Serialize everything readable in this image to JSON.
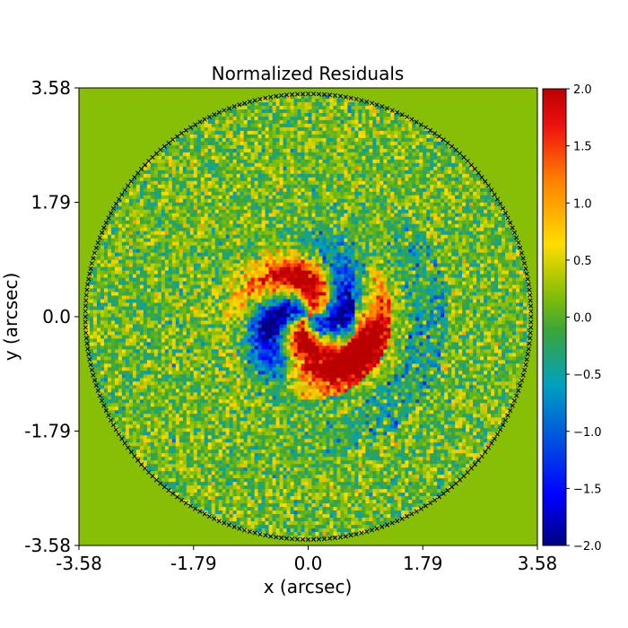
{
  "chart_data": {
    "type": "heatmap",
    "title": "Normalized Residuals",
    "xlabel": "x (arcsec)",
    "ylabel": "y (arcsec)",
    "xlim": [
      -3.58,
      3.58
    ],
    "ylim": [
      -3.58,
      3.58
    ],
    "x_ticks": [
      "-3.58",
      "-1.79",
      "0.0",
      "1.79",
      "3.58"
    ],
    "y_ticks": [
      "3.58",
      "1.79",
      "0.0",
      "-1.79",
      "-3.58"
    ],
    "mask_radius": 3.48,
    "colorbar": {
      "range": [
        -2.0,
        2.0
      ],
      "ticks": [
        "2.0",
        "1.5",
        "1.0",
        "0.5",
        "0.0",
        "−0.5",
        "−1.0",
        "−1.5",
        "−2.0"
      ],
      "colormap": "jet"
    },
    "grid": false,
    "colors": {
      "background_zero": "#86bf06",
      "mask_edge": "#000000",
      "frame": "#000000"
    }
  }
}
